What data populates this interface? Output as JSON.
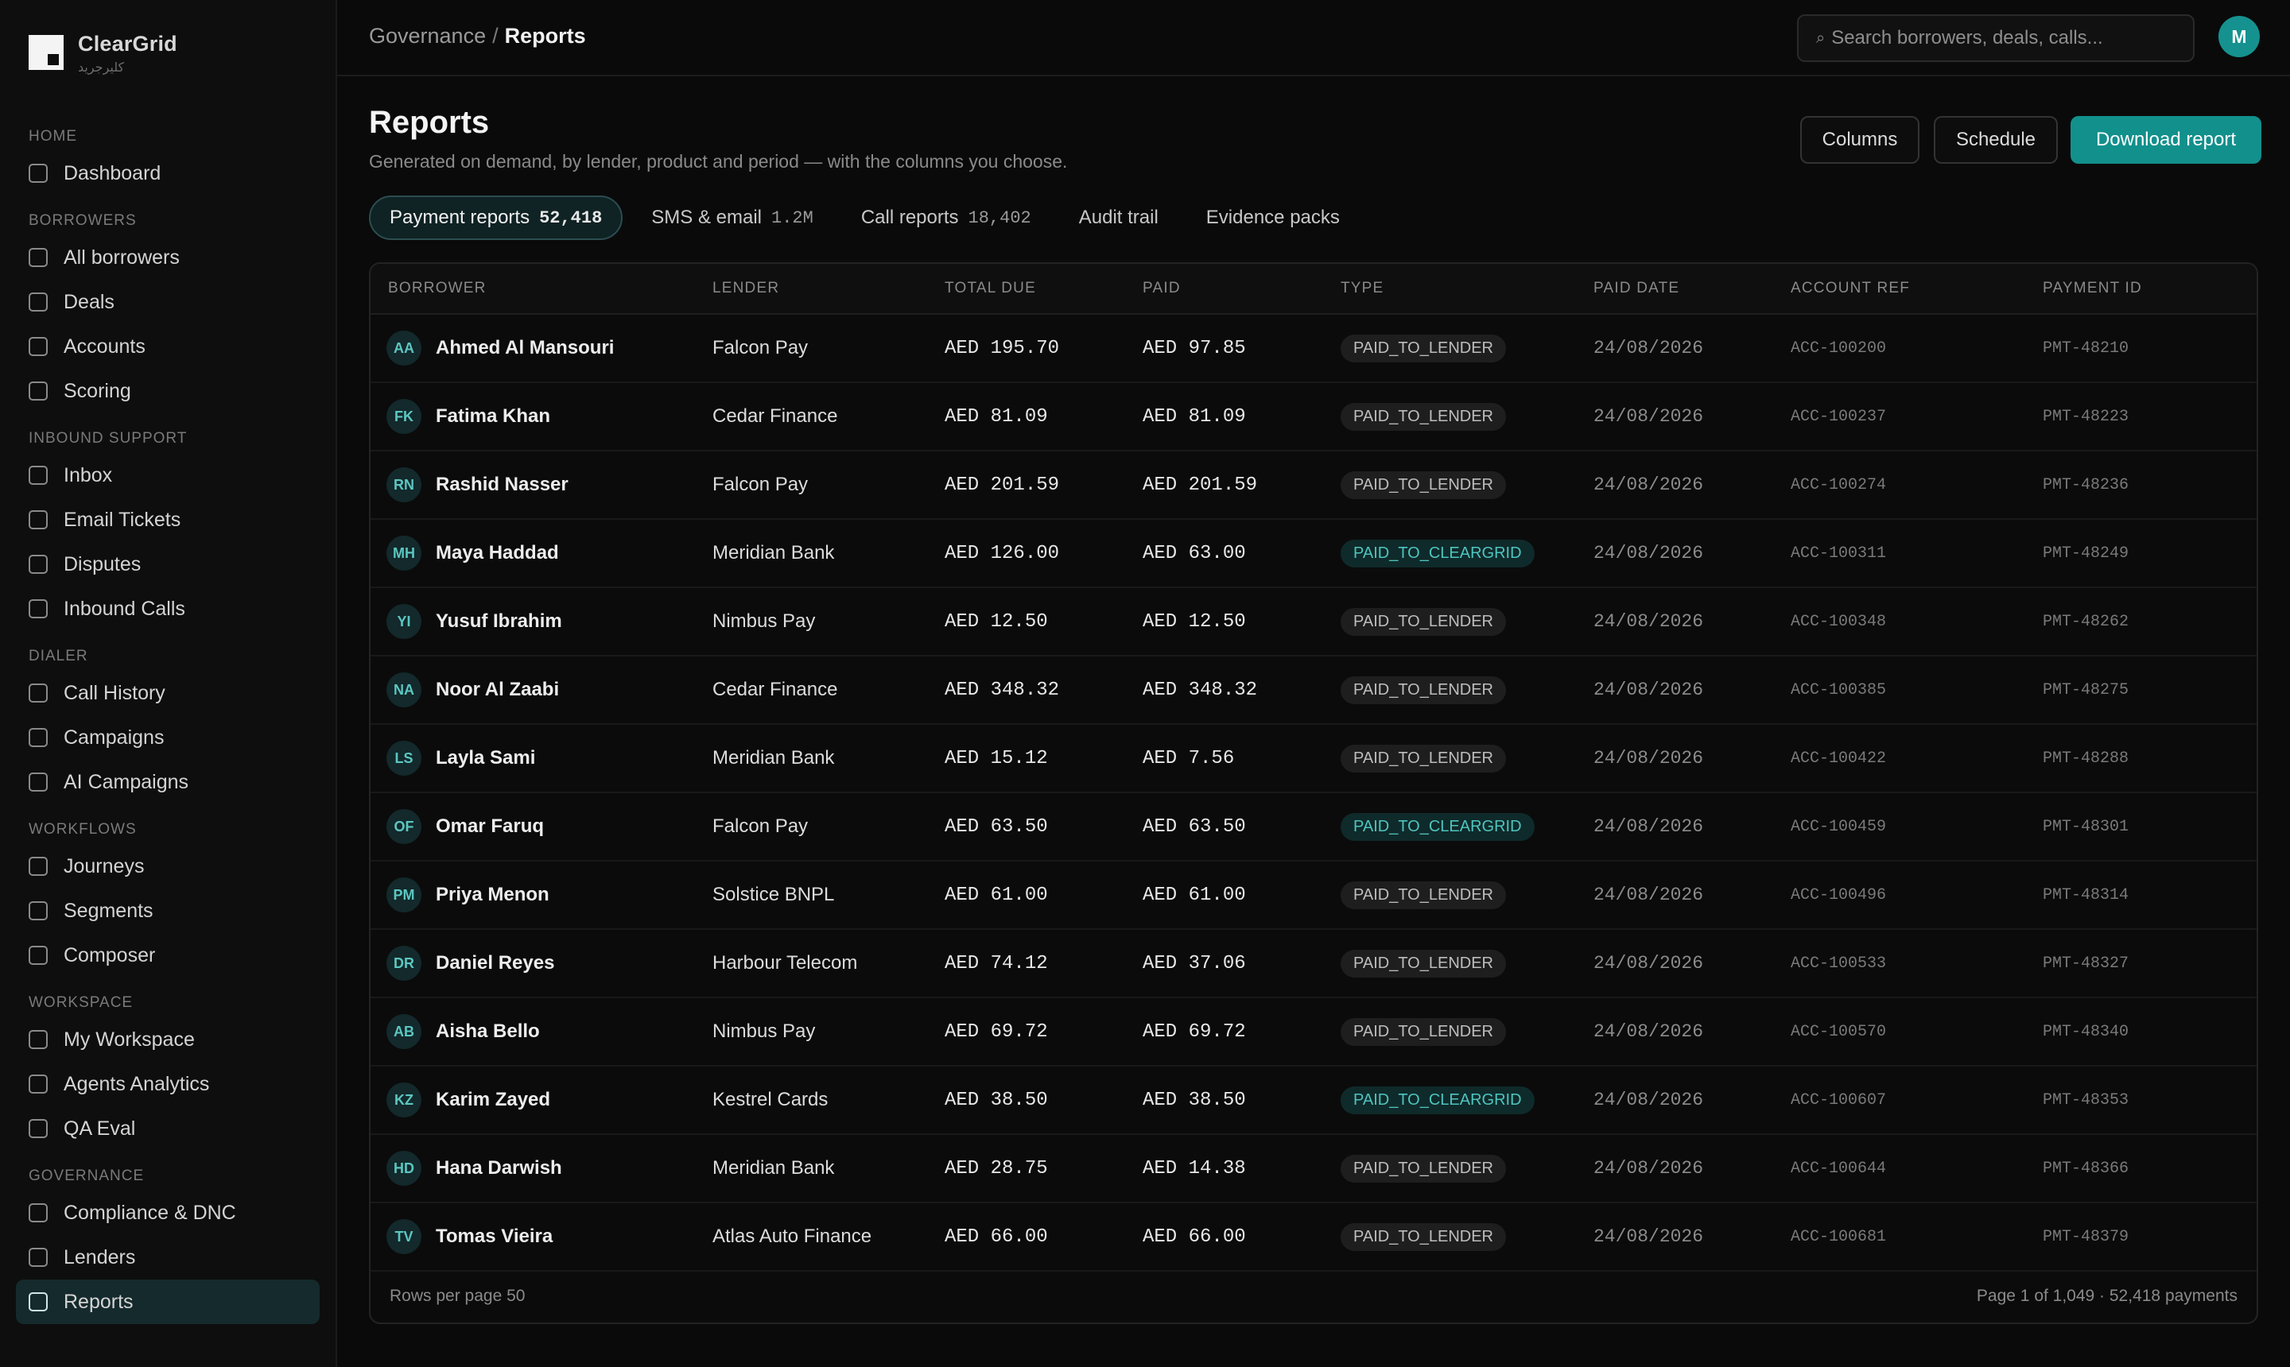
{
  "brand": {
    "name": "ClearGrid",
    "subtitle": "كليرجريد"
  },
  "sidebar": {
    "groups": [
      {
        "title": "HOME",
        "items": [
          {
            "label": "Dashboard",
            "active": false
          }
        ]
      },
      {
        "title": "BORROWERS",
        "items": [
          {
            "label": "All borrowers",
            "active": false
          },
          {
            "label": "Deals",
            "active": false
          },
          {
            "label": "Accounts",
            "active": false
          },
          {
            "label": "Scoring",
            "active": false
          }
        ]
      },
      {
        "title": "INBOUND SUPPORT",
        "items": [
          {
            "label": "Inbox",
            "active": false
          },
          {
            "label": "Email Tickets",
            "active": false
          },
          {
            "label": "Disputes",
            "active": false
          },
          {
            "label": "Inbound Calls",
            "active": false
          }
        ]
      },
      {
        "title": "DIALER",
        "items": [
          {
            "label": "Call History",
            "active": false
          },
          {
            "label": "Campaigns",
            "active": false
          },
          {
            "label": "AI Campaigns",
            "active": false
          }
        ]
      },
      {
        "title": "WORKFLOWS",
        "items": [
          {
            "label": "Journeys",
            "active": false
          },
          {
            "label": "Segments",
            "active": false
          },
          {
            "label": "Composer",
            "active": false
          }
        ]
      },
      {
        "title": "WORKSPACE",
        "items": [
          {
            "label": "My Workspace",
            "active": false
          },
          {
            "label": "Agents Analytics",
            "active": false
          },
          {
            "label": "QA Eval",
            "active": false
          }
        ]
      },
      {
        "title": "GOVERNANCE",
        "items": [
          {
            "label": "Compliance & DNC",
            "active": false
          },
          {
            "label": "Lenders",
            "active": false
          },
          {
            "label": "Reports",
            "active": true
          }
        ]
      }
    ]
  },
  "topbar": {
    "breadcrumb_parent": "Governance",
    "breadcrumb_sep": "/",
    "breadcrumb_current": "Reports",
    "search_placeholder": "Search borrowers, deals, calls...",
    "search_icon": "⌕",
    "avatar_initial": "M"
  },
  "header": {
    "title": "Reports",
    "subtitle": "Generated on demand, by lender, product and period — with the columns you choose.",
    "buttons": {
      "columns": "Columns",
      "schedule": "Schedule",
      "download": "Download report"
    }
  },
  "tabs": [
    {
      "label": "Payment reports",
      "count": "52,418",
      "active": true
    },
    {
      "label": "SMS & email",
      "count": "1.2M",
      "active": false
    },
    {
      "label": "Call reports",
      "count": "18,402",
      "active": false
    },
    {
      "label": "Audit trail",
      "count": "",
      "active": false
    },
    {
      "label": "Evidence packs",
      "count": "",
      "active": false
    }
  ],
  "table": {
    "columns": [
      "BORROWER",
      "LENDER",
      "TOTAL DUE",
      "PAID",
      "TYPE",
      "PAID DATE",
      "ACCOUNT REF",
      "PAYMENT ID"
    ],
    "rows": [
      {
        "initials": "AA",
        "borrower": "Ahmed Al Mansouri",
        "lender": "Falcon Pay",
        "total": "AED 195.70",
        "paid": "AED 97.85",
        "type": "PAID_TO_LENDER",
        "date": "24/08/2026",
        "ref": "ACC-100200",
        "pid": "PMT-48210"
      },
      {
        "initials": "FK",
        "borrower": "Fatima Khan",
        "lender": "Cedar Finance",
        "total": "AED 81.09",
        "paid": "AED 81.09",
        "type": "PAID_TO_LENDER",
        "date": "24/08/2026",
        "ref": "ACC-100237",
        "pid": "PMT-48223"
      },
      {
        "initials": "RN",
        "borrower": "Rashid Nasser",
        "lender": "Falcon Pay",
        "total": "AED 201.59",
        "paid": "AED 201.59",
        "type": "PAID_TO_LENDER",
        "date": "24/08/2026",
        "ref": "ACC-100274",
        "pid": "PMT-48236"
      },
      {
        "initials": "MH",
        "borrower": "Maya Haddad",
        "lender": "Meridian Bank",
        "total": "AED 126.00",
        "paid": "AED 63.00",
        "type": "PAID_TO_CLEARGRID",
        "date": "24/08/2026",
        "ref": "ACC-100311",
        "pid": "PMT-48249"
      },
      {
        "initials": "YI",
        "borrower": "Yusuf Ibrahim",
        "lender": "Nimbus Pay",
        "total": "AED 12.50",
        "paid": "AED 12.50",
        "type": "PAID_TO_LENDER",
        "date": "24/08/2026",
        "ref": "ACC-100348",
        "pid": "PMT-48262"
      },
      {
        "initials": "NA",
        "borrower": "Noor Al Zaabi",
        "lender": "Cedar Finance",
        "total": "AED 348.32",
        "paid": "AED 348.32",
        "type": "PAID_TO_LENDER",
        "date": "24/08/2026",
        "ref": "ACC-100385",
        "pid": "PMT-48275"
      },
      {
        "initials": "LS",
        "borrower": "Layla Sami",
        "lender": "Meridian Bank",
        "total": "AED 15.12",
        "paid": "AED 7.56",
        "type": "PAID_TO_LENDER",
        "date": "24/08/2026",
        "ref": "ACC-100422",
        "pid": "PMT-48288"
      },
      {
        "initials": "OF",
        "borrower": "Omar Faruq",
        "lender": "Falcon Pay",
        "total": "AED 63.50",
        "paid": "AED 63.50",
        "type": "PAID_TO_CLEARGRID",
        "date": "24/08/2026",
        "ref": "ACC-100459",
        "pid": "PMT-48301"
      },
      {
        "initials": "PM",
        "borrower": "Priya Menon",
        "lender": "Solstice BNPL",
        "total": "AED 61.00",
        "paid": "AED 61.00",
        "type": "PAID_TO_LENDER",
        "date": "24/08/2026",
        "ref": "ACC-100496",
        "pid": "PMT-48314"
      },
      {
        "initials": "DR",
        "borrower": "Daniel Reyes",
        "lender": "Harbour Telecom",
        "total": "AED 74.12",
        "paid": "AED 37.06",
        "type": "PAID_TO_LENDER",
        "date": "24/08/2026",
        "ref": "ACC-100533",
        "pid": "PMT-48327"
      },
      {
        "initials": "AB",
        "borrower": "Aisha Bello",
        "lender": "Nimbus Pay",
        "total": "AED 69.72",
        "paid": "AED 69.72",
        "type": "PAID_TO_LENDER",
        "date": "24/08/2026",
        "ref": "ACC-100570",
        "pid": "PMT-48340"
      },
      {
        "initials": "KZ",
        "borrower": "Karim Zayed",
        "lender": "Kestrel Cards",
        "total": "AED 38.50",
        "paid": "AED 38.50",
        "type": "PAID_TO_CLEARGRID",
        "date": "24/08/2026",
        "ref": "ACC-100607",
        "pid": "PMT-48353"
      },
      {
        "initials": "HD",
        "borrower": "Hana Darwish",
        "lender": "Meridian Bank",
        "total": "AED 28.75",
        "paid": "AED 14.38",
        "type": "PAID_TO_LENDER",
        "date": "24/08/2026",
        "ref": "ACC-100644",
        "pid": "PMT-48366"
      },
      {
        "initials": "TV",
        "borrower": "Tomas Vieira",
        "lender": "Atlas Auto Finance",
        "total": "AED 66.00",
        "paid": "AED 66.00",
        "type": "PAID_TO_LENDER",
        "date": "24/08/2026",
        "ref": "ACC-100681",
        "pid": "PMT-48379"
      }
    ],
    "footer_left": "Rows per page 50",
    "footer_right": "Page 1 of 1,049 · 52,418 payments"
  },
  "colors": {
    "accent": "#12908c",
    "active_nav_bg": "#152a2d",
    "cleargrid_pill": "#4fc4bf"
  }
}
